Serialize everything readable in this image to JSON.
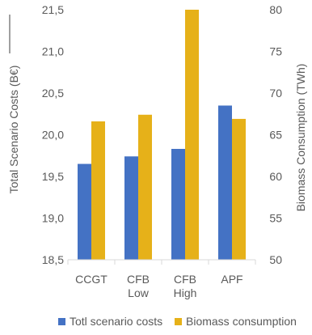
{
  "chart_data": {
    "type": "bar",
    "categories": [
      [
        "CCGT"
      ],
      [
        "CFB",
        "Low"
      ],
      [
        "CFB",
        "High"
      ],
      [
        "APF"
      ]
    ],
    "series": [
      {
        "name": "Totl scenario costs",
        "axis": "left",
        "color": "#4472C4",
        "values": [
          19.65,
          19.74,
          19.83,
          20.35
        ]
      },
      {
        "name": "Biomass consumption",
        "axis": "right",
        "color": "#E6B119",
        "values": [
          66.6,
          67.4,
          80.0,
          66.9
        ]
      }
    ],
    "y_left": {
      "label": "Total Scenario Costs (B€)",
      "min": 18.5,
      "max": 21.5,
      "ticks": [
        "18,5",
        "19,0",
        "19,5",
        "20,0",
        "20,5",
        "21,0",
        "21,5"
      ]
    },
    "y_right": {
      "label": "Biomass Consumption (TWh)",
      "min": 50,
      "max": 80,
      "ticks": [
        "50",
        "55",
        "60",
        "65",
        "70",
        "75",
        "80"
      ]
    },
    "legend_position": "bottom",
    "grid": false
  }
}
